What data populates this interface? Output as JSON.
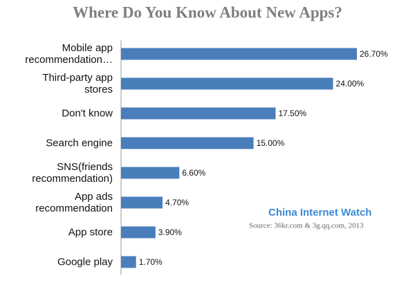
{
  "chart_data": {
    "type": "bar",
    "orientation": "horizontal",
    "title": "Where Do You Know About New Apps?",
    "categories": [
      "Mobile app\nrecommendation…",
      "Third-party app\nstores",
      "Don't know",
      "Search engine",
      "SNS(friends\nrecommendation)",
      "App ads\nrecommendation",
      "App store",
      "Google play"
    ],
    "values": [
      26.7,
      24.0,
      17.5,
      15.0,
      6.6,
      4.7,
      3.9,
      1.7
    ],
    "value_labels": [
      "26.70%",
      "24.00%",
      "17.50%",
      "15.00%",
      "6.60%",
      "4.70%",
      "3.90%",
      "1.70%"
    ],
    "color": "#4a7ebb",
    "brand": "China Internet Watch",
    "source": "Source: 36kr.com & 3g.qq.com, 2013"
  }
}
